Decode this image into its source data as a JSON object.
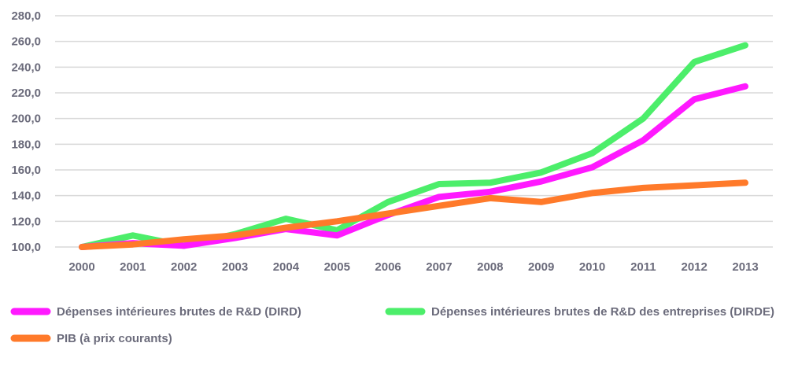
{
  "chart_data": {
    "type": "line",
    "x": [
      "2000",
      "2001",
      "2002",
      "2003",
      "2004",
      "2005",
      "2006",
      "2007",
      "2008",
      "2009",
      "2010",
      "2011",
      "2012",
      "2013"
    ],
    "y_ticks": [
      "100,0",
      "120,0",
      "140,0",
      "160,0",
      "180,0",
      "200,0",
      "220,0",
      "240,0",
      "260,0",
      "280,0"
    ],
    "ylim": [
      100,
      280
    ],
    "grid": true,
    "legend_position": "bottom",
    "series": [
      {
        "name": "Dépenses intérieures brutes de R&D (DIRD)",
        "color": "#ff19ff",
        "values": [
          100,
          103,
          101,
          107,
          114,
          109,
          125,
          139,
          143,
          151,
          162,
          183,
          215,
          225
        ]
      },
      {
        "name": "Dépenses intérieures brutes de R&D des entreprises (DIRDE)",
        "color": "#4cee6a",
        "values": [
          100,
          109,
          101,
          110,
          122,
          113,
          135,
          149,
          150,
          158,
          173,
          200,
          244,
          257
        ]
      },
      {
        "name": "PIB (à prix courants)",
        "color": "#ff7a2a",
        "values": [
          100,
          102,
          106,
          109,
          115,
          120,
          126,
          132,
          138,
          135,
          142,
          146,
          148,
          150
        ]
      }
    ]
  }
}
